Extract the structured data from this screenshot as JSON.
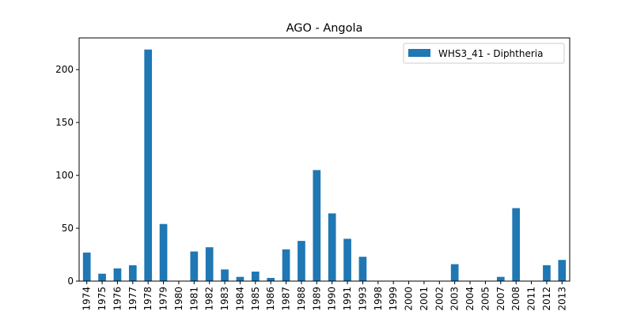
{
  "chart_data": {
    "type": "bar",
    "title": "AGO - Angola",
    "xlabel": "",
    "ylabel": "",
    "ylim": [
      0,
      230
    ],
    "yticks": [
      0,
      50,
      100,
      150,
      200
    ],
    "grid": false,
    "legend_position": "top-right",
    "bar_color": "#1f77b4",
    "categories": [
      "1974",
      "1975",
      "1976",
      "1977",
      "1978",
      "1979",
      "1980",
      "1981",
      "1982",
      "1983",
      "1984",
      "1985",
      "1986",
      "1987",
      "1988",
      "1989",
      "1990",
      "1991",
      "1993",
      "1998",
      "1999",
      "2000",
      "2001",
      "2002",
      "2003",
      "2004",
      "2005",
      "2007",
      "2008",
      "2011",
      "2012",
      "2013"
    ],
    "series": [
      {
        "name": "WHS3_41 - Diphtheria",
        "values": [
          27,
          7,
          12,
          15,
          219,
          54,
          0,
          28,
          32,
          11,
          4,
          9,
          3,
          30,
          38,
          105,
          64,
          40,
          23,
          0,
          0,
          0,
          0,
          0,
          16,
          0,
          0,
          4,
          69,
          0,
          15,
          20
        ]
      }
    ]
  }
}
